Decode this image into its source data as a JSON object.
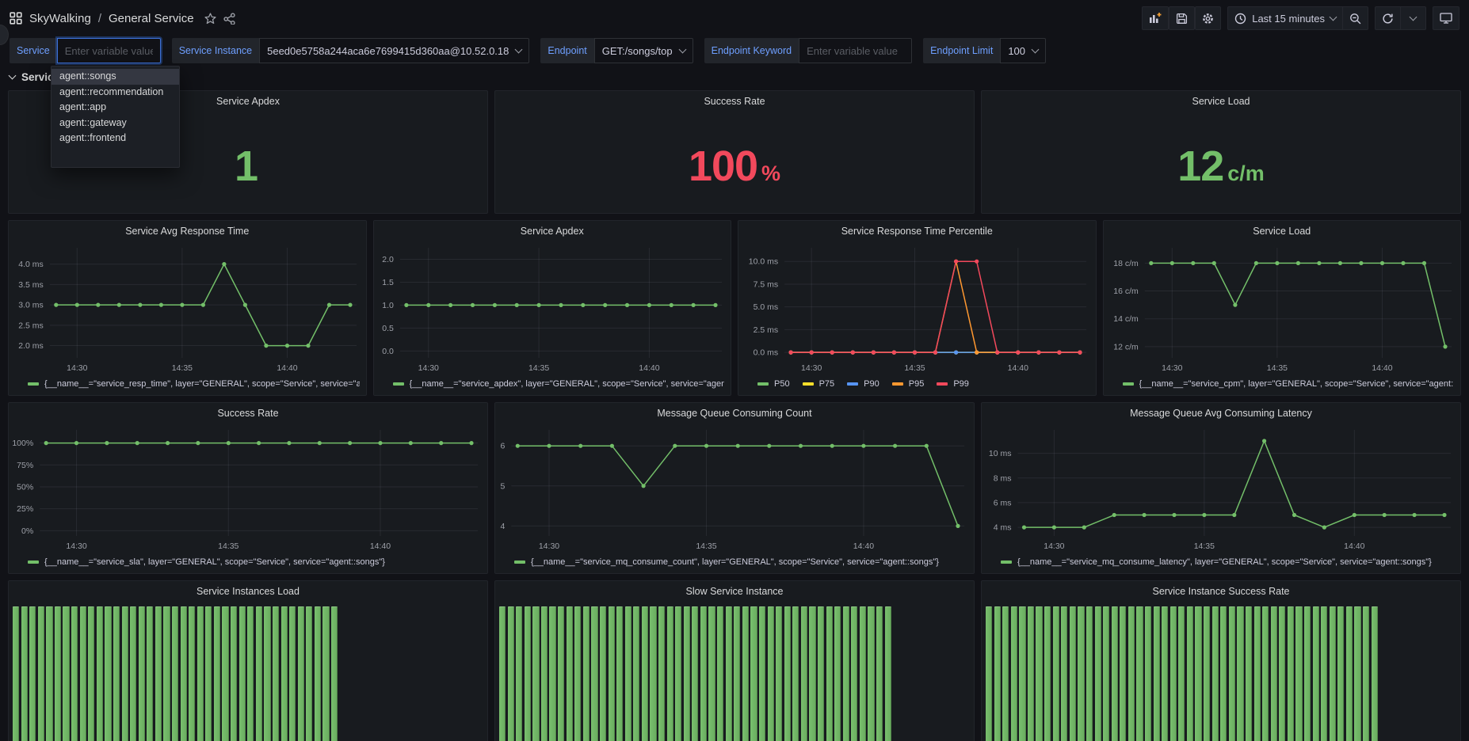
{
  "header": {
    "breadcrumb": {
      "app": "SkyWalking",
      "sep": "/",
      "page": "General Service"
    },
    "time_range": "Last 15 minutes"
  },
  "variables": [
    {
      "label": "Service",
      "type": "input",
      "value": "",
      "placeholder": "Enter variable value",
      "focused": true
    },
    {
      "label": "Service Instance",
      "type": "select",
      "value": "5eed0e5758a244aca6e7699415d360aa@10.52.0.18"
    },
    {
      "label": "Endpoint",
      "type": "select",
      "value": "GET:/songs/top"
    },
    {
      "label": "Endpoint Keyword",
      "type": "input",
      "value": "",
      "placeholder": "Enter variable value"
    },
    {
      "label": "Endpoint Limit",
      "type": "select",
      "value": "100"
    }
  ],
  "dropdown": {
    "options": [
      "agent::songs",
      "agent::recommendation",
      "agent::app",
      "agent::gateway",
      "agent::frontend"
    ],
    "highlighted_index": 0
  },
  "section_title": "Service",
  "stats": [
    {
      "title": "Service Apdex",
      "value": "1",
      "suffix": "",
      "color": "#73bf69"
    },
    {
      "title": "Success Rate",
      "value": "100",
      "suffix": "%",
      "color": "#f2495c"
    },
    {
      "title": "Service Load",
      "value": "12",
      "suffix": "c/m",
      "color": "#73bf69"
    }
  ],
  "chart_data": [
    {
      "type": "line",
      "title": "Service Avg Response Time",
      "x": [
        29,
        30,
        31,
        32,
        33,
        34,
        35,
        36,
        37,
        38,
        39,
        40,
        41,
        42,
        43
      ],
      "xticks": {
        "values": [
          30,
          35,
          40
        ],
        "labels": [
          "14:30",
          "14:35",
          "14:40"
        ]
      },
      "ylim": [
        1.7,
        4.4
      ],
      "yticks": {
        "values": [
          2,
          2.5,
          3,
          3.5,
          4
        ],
        "labels": [
          "2.0 ms",
          "2.5 ms",
          "3.0 ms",
          "3.5 ms",
          "4.0 ms"
        ]
      },
      "series": [
        {
          "name": "{__name__=\"service_resp_time\", layer=\"GENERAL\", scope=\"Service\", service=\"agent::songs\"}",
          "color": "#73bf69",
          "values": [
            3,
            3,
            3,
            3,
            3,
            3,
            3,
            3,
            4,
            3,
            2,
            2,
            2,
            3,
            3
          ]
        }
      ]
    },
    {
      "type": "line",
      "title": "Service Apdex",
      "x": [
        29,
        30,
        31,
        32,
        33,
        34,
        35,
        36,
        37,
        38,
        39,
        40,
        41,
        42,
        43
      ],
      "xticks": {
        "values": [
          30,
          35,
          40
        ],
        "labels": [
          "14:30",
          "14:35",
          "14:40"
        ]
      },
      "ylim": [
        -0.15,
        2.25
      ],
      "yticks": {
        "values": [
          0,
          0.5,
          1,
          1.5,
          2
        ],
        "labels": [
          "0.0",
          "0.5",
          "1.0",
          "1.5",
          "2.0"
        ]
      },
      "series": [
        {
          "name": "{__name__=\"service_apdex\", layer=\"GENERAL\", scope=\"Service\", service=\"agent::songs\"}",
          "color": "#73bf69",
          "values": [
            1,
            1,
            1,
            1,
            1,
            1,
            1,
            1,
            1,
            1,
            1,
            1,
            1,
            1,
            1
          ]
        }
      ]
    },
    {
      "type": "line",
      "title": "Service Response Time Percentile",
      "x": [
        29,
        30,
        31,
        32,
        33,
        34,
        35,
        36,
        37,
        38,
        39,
        40,
        41,
        42,
        43
      ],
      "xticks": {
        "values": [
          30,
          35,
          40
        ],
        "labels": [
          "14:30",
          "14:35",
          "14:40"
        ]
      },
      "ylim": [
        -0.6,
        11.5
      ],
      "yticks": {
        "values": [
          0,
          2.5,
          5,
          7.5,
          10
        ],
        "labels": [
          "0.0 ms",
          "2.5 ms",
          "5.0 ms",
          "7.5 ms",
          "10.0 ms"
        ]
      },
      "series": [
        {
          "name": "P50",
          "color": "#73bf69",
          "values": [
            0,
            0,
            0,
            0,
            0,
            0,
            0,
            0,
            0,
            0,
            0,
            0,
            0,
            0,
            0
          ]
        },
        {
          "name": "P75",
          "color": "#fade2a",
          "values": [
            0,
            0,
            0,
            0,
            0,
            0,
            0,
            0,
            0,
            0,
            0,
            0,
            0,
            0,
            0
          ]
        },
        {
          "name": "P90",
          "color": "#5794f2",
          "values": [
            0,
            0,
            0,
            0,
            0,
            0,
            0,
            0,
            0,
            0,
            0,
            0,
            0,
            0,
            0
          ]
        },
        {
          "name": "P95",
          "color": "#ff9830",
          "values": [
            0,
            0,
            0,
            0,
            0,
            0,
            0,
            0,
            10,
            0,
            0,
            0,
            0,
            0,
            0
          ]
        },
        {
          "name": "P99",
          "color": "#f2495c",
          "values": [
            0,
            0,
            0,
            0,
            0,
            0,
            0,
            0,
            10,
            10,
            0,
            0,
            0,
            0,
            0
          ]
        }
      ]
    },
    {
      "type": "line",
      "title": "Service Load",
      "x": [
        29,
        30,
        31,
        32,
        33,
        34,
        35,
        36,
        37,
        38,
        39,
        40,
        41,
        42,
        43
      ],
      "xticks": {
        "values": [
          30,
          35,
          40
        ],
        "labels": [
          "14:30",
          "14:35",
          "14:40"
        ]
      },
      "ylim": [
        11.2,
        19.1
      ],
      "yticks": {
        "values": [
          12,
          14,
          16,
          18
        ],
        "labels": [
          "12 c/m",
          "14 c/m",
          "16 c/m",
          "18 c/m"
        ]
      },
      "series": [
        {
          "name": "{__name__=\"service_cpm\", layer=\"GENERAL\", scope=\"Service\", service=\"agent::songs\"}",
          "color": "#73bf69",
          "values": [
            18,
            18,
            18,
            18,
            15,
            18,
            18,
            18,
            18,
            18,
            18,
            18,
            18,
            18,
            12
          ]
        }
      ]
    },
    {
      "type": "line",
      "title": "Success Rate",
      "x": [
        29,
        30,
        31,
        32,
        33,
        34,
        35,
        36,
        37,
        38,
        39,
        40,
        41,
        42,
        43
      ],
      "xticks": {
        "values": [
          30,
          35,
          40
        ],
        "labels": [
          "14:30",
          "14:35",
          "14:40"
        ]
      },
      "ylim": [
        -6,
        115
      ],
      "yticks": {
        "values": [
          0,
          25,
          50,
          75,
          100
        ],
        "labels": [
          "0%",
          "25%",
          "50%",
          "75%",
          "100%"
        ]
      },
      "series": [
        {
          "name": "{__name__=\"service_sla\", layer=\"GENERAL\", scope=\"Service\", service=\"agent::songs\"}",
          "color": "#73bf69",
          "values": [
            100,
            100,
            100,
            100,
            100,
            100,
            100,
            100,
            100,
            100,
            100,
            100,
            100,
            100,
            100
          ]
        }
      ]
    },
    {
      "type": "line",
      "title": "Message Queue Consuming Count",
      "x": [
        29,
        30,
        31,
        32,
        33,
        34,
        35,
        36,
        37,
        38,
        39,
        40,
        41,
        42,
        43
      ],
      "xticks": {
        "values": [
          30,
          35,
          40
        ],
        "labels": [
          "14:30",
          "14:35",
          "14:40"
        ]
      },
      "ylim": [
        3.75,
        6.4
      ],
      "yticks": {
        "values": [
          4,
          5,
          6
        ],
        "labels": [
          "4",
          "5",
          "6"
        ]
      },
      "series": [
        {
          "name": "{__name__=\"service_mq_consume_count\", layer=\"GENERAL\", scope=\"Service\", service=\"agent::songs\"}",
          "color": "#73bf69",
          "values": [
            6,
            6,
            6,
            6,
            5,
            6,
            6,
            6,
            6,
            6,
            6,
            6,
            6,
            6,
            4
          ]
        }
      ]
    },
    {
      "type": "line",
      "title": "Message Queue Avg Consuming Latency",
      "x": [
        29,
        30,
        31,
        32,
        33,
        34,
        35,
        36,
        37,
        38,
        39,
        40,
        41,
        42,
        43
      ],
      "xticks": {
        "values": [
          30,
          35,
          40
        ],
        "labels": [
          "14:30",
          "14:35",
          "14:40"
        ]
      },
      "ylim": [
        3.3,
        11.9
      ],
      "yticks": {
        "values": [
          4,
          6,
          8,
          10
        ],
        "labels": [
          "4 ms",
          "6 ms",
          "8 ms",
          "10 ms"
        ]
      },
      "series": [
        {
          "name": "{__name__=\"service_mq_consume_latency\", layer=\"GENERAL\", scope=\"Service\", service=\"agent::songs\"}",
          "color": "#73bf69",
          "values": [
            4,
            4,
            4,
            5,
            5,
            5,
            5,
            5,
            11,
            5,
            4,
            5,
            5,
            5,
            5
          ]
        }
      ]
    },
    {
      "type": "bar_gauge",
      "title": "Service Instances Load",
      "bar_count": 39,
      "bar_color": "#73bf69"
    },
    {
      "type": "bar_gauge",
      "title": "Slow Service Instance",
      "bar_count": 47,
      "bar_color": "#73bf69"
    },
    {
      "type": "bar_gauge",
      "title": "Service Instance Success Rate",
      "bar_count": 47,
      "bar_color": "#73bf69"
    }
  ]
}
